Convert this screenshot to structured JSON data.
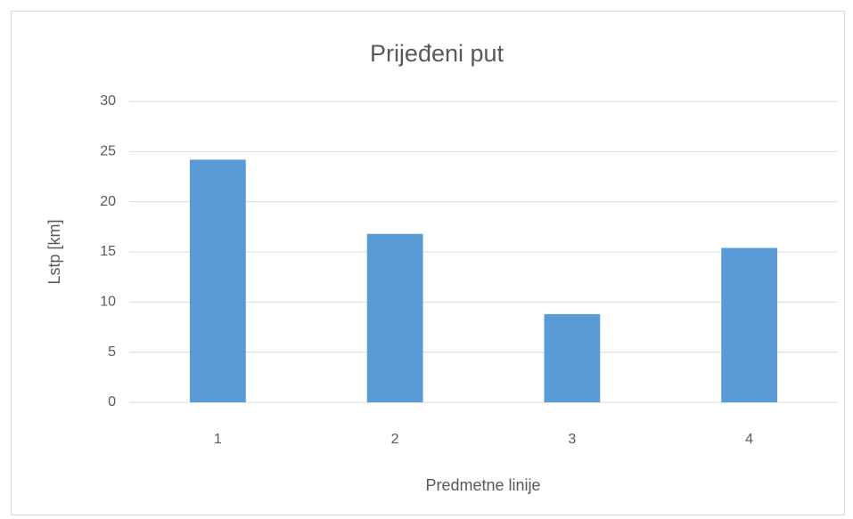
{
  "chart_data": {
    "type": "bar",
    "title": "Prijeđeni put",
    "x_label": "Predmetne linije",
    "y_label": "Lstp [km]",
    "categories": [
      "1",
      "2",
      "3",
      "4"
    ],
    "values": [
      24.2,
      16.8,
      8.8,
      15.4
    ],
    "color": "#5b9bd5",
    "ylim": [
      0,
      30
    ],
    "yticks": [
      0,
      5,
      10,
      15,
      20,
      25,
      30
    ],
    "grid": true
  }
}
